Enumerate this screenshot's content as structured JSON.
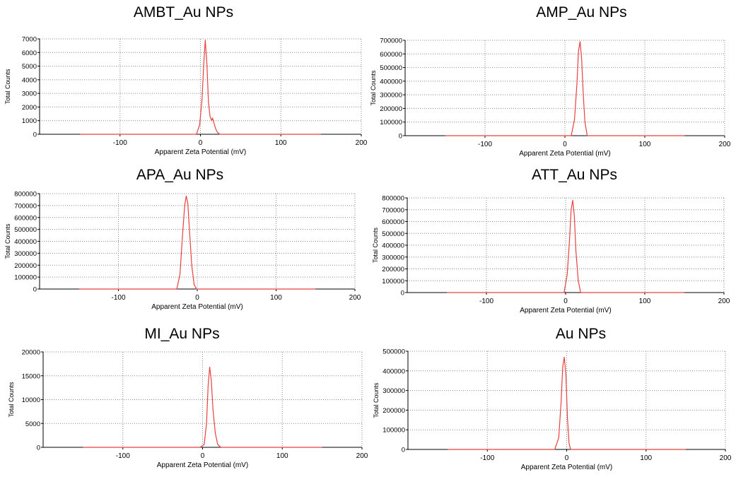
{
  "style": {
    "grid_color": "#888888",
    "line_color": "#e8423f",
    "axis_color": "#000000"
  },
  "chart_data": [
    {
      "type": "line",
      "title": "AMBT_Au NPs",
      "xlabel": "Apparent Zeta Potential (mV)",
      "ylabel": "Total Counts",
      "xlim": [
        -200,
        200
      ],
      "ylim": [
        0,
        7000
      ],
      "xticks": [
        -100,
        0,
        100,
        200
      ],
      "xtick_labels": [
        "-100",
        "0",
        "100",
        "200"
      ],
      "yticks": [
        0,
        1000,
        2000,
        3000,
        4000,
        5000,
        6000,
        7000
      ],
      "ytick_labels": [
        "0",
        "1000",
        "2000",
        "3000",
        "4000",
        "5000",
        "6000",
        "7000"
      ],
      "grid": true,
      "series": [
        {
          "x": [
            -150,
            -5,
            -1,
            2,
            4,
            6,
            8,
            10,
            12,
            14,
            15,
            17,
            19,
            21,
            24,
            150
          ],
          "y": [
            0,
            0,
            700,
            2600,
            5100,
            6900,
            5200,
            2300,
            1300,
            1000,
            1200,
            800,
            400,
            150,
            0,
            0
          ]
        }
      ]
    },
    {
      "type": "line",
      "title": "AMP_Au NPs",
      "xlabel": "Apparent Zeta Potential (mV)",
      "ylabel": "Total Counts",
      "xlim": [
        -200,
        200
      ],
      "ylim": [
        0,
        700000
      ],
      "xticks": [
        -100,
        0,
        100,
        200
      ],
      "xtick_labels": [
        "-100",
        "0",
        "100",
        "200"
      ],
      "yticks": [
        0,
        100000,
        200000,
        300000,
        400000,
        500000,
        600000,
        700000
      ],
      "ytick_labels": [
        "0",
        "100000",
        "200000",
        "300000",
        "400000",
        "500000",
        "600000",
        "700000"
      ],
      "grid": true,
      "series": [
        {
          "x": [
            -150,
            8,
            12,
            15,
            17,
            19,
            21,
            23,
            25,
            28,
            150
          ],
          "y": [
            0,
            0,
            120000,
            380000,
            620000,
            690000,
            560000,
            300000,
            100000,
            0,
            0
          ]
        }
      ]
    },
    {
      "type": "line",
      "title": "APA_Au NPs",
      "xlabel": "Apparent Zeta Potential (mV)",
      "ylabel": "Total Counts",
      "xlim": [
        -200,
        200
      ],
      "ylim": [
        0,
        800000
      ],
      "xticks": [
        -100,
        0,
        100,
        200
      ],
      "xtick_labels": [
        "-100",
        "0",
        "100",
        "200"
      ],
      "yticks": [
        0,
        100000,
        200000,
        300000,
        400000,
        500000,
        600000,
        700000,
        800000
      ],
      "ytick_labels": [
        "0",
        "100000",
        "200000",
        "300000",
        "400000",
        "500000",
        "600000",
        "700000",
        "800000"
      ],
      "grid": true,
      "series": [
        {
          "x": [
            -150,
            -26,
            -22,
            -19,
            -16,
            -14,
            -12,
            -10,
            -7,
            -4,
            -1,
            150
          ],
          "y": [
            0,
            0,
            120000,
            420000,
            700000,
            780000,
            720000,
            500000,
            200000,
            40000,
            0,
            0
          ]
        }
      ]
    },
    {
      "type": "line",
      "title": "ATT_Au NPs",
      "xlabel": "Apparent Zeta Potential (mV)",
      "ylabel": "Total Counts",
      "xlim": [
        -200,
        200
      ],
      "ylim": [
        0,
        800000
      ],
      "xticks": [
        -100,
        0,
        100,
        200
      ],
      "xtick_labels": [
        "-100",
        "0",
        "100",
        "200"
      ],
      "yticks": [
        0,
        100000,
        200000,
        300000,
        400000,
        500000,
        600000,
        700000,
        800000
      ],
      "ytick_labels": [
        "0",
        "100000",
        "200000",
        "300000",
        "400000",
        "500000",
        "600000",
        "700000",
        "800000"
      ],
      "grid": true,
      "series": [
        {
          "x": [
            -150,
            -2,
            2,
            5,
            7,
            9,
            11,
            13,
            16,
            19,
            150
          ],
          "y": [
            0,
            0,
            150000,
            450000,
            700000,
            780000,
            650000,
            350000,
            100000,
            0,
            0
          ]
        }
      ]
    },
    {
      "type": "line",
      "title": "MI_Au NPs",
      "xlabel": "Apparent Zeta Potential (mV)",
      "ylabel": "Total Counts",
      "xlim": [
        -200,
        200
      ],
      "ylim": [
        0,
        20000
      ],
      "xticks": [
        -100,
        0,
        100,
        200
      ],
      "xtick_labels": [
        "-100",
        "0",
        "100",
        "200"
      ],
      "yticks": [
        0,
        5000,
        10000,
        15000,
        20000
      ],
      "ytick_labels": [
        "0",
        "5000",
        "10000",
        "15000",
        "20000"
      ],
      "grid": true,
      "series": [
        {
          "x": [
            -150,
            -3,
            2,
            5,
            7,
            9,
            11,
            13,
            16,
            19,
            23,
            150
          ],
          "y": [
            0,
            0,
            600,
            5000,
            13000,
            16800,
            14000,
            8000,
            3000,
            600,
            0,
            0
          ]
        }
      ]
    },
    {
      "type": "line",
      "title": "Au NPs",
      "xlabel": "Apparent Zeta Potential (mV)",
      "ylabel": "Total Counts",
      "xlim": [
        -200,
        200
      ],
      "ylim": [
        0,
        500000
      ],
      "xticks": [
        -100,
        0,
        100,
        200
      ],
      "xtick_labels": [
        "-100",
        "0",
        "100",
        "200"
      ],
      "yticks": [
        0,
        100000,
        200000,
        300000,
        400000,
        500000
      ],
      "ytick_labels": [
        "0",
        "100000",
        "200000",
        "300000",
        "400000",
        "500000"
      ],
      "grid": true,
      "series": [
        {
          "x": [
            -150,
            -15,
            -10,
            -7,
            -5,
            -3,
            -1,
            1,
            3,
            5,
            150
          ],
          "y": [
            0,
            0,
            60000,
            240000,
            420000,
            470000,
            380000,
            160000,
            30000,
            0,
            0
          ]
        }
      ]
    }
  ]
}
